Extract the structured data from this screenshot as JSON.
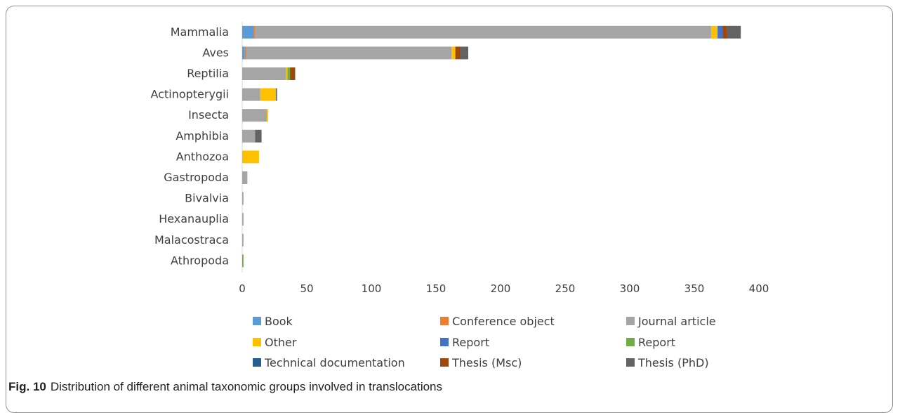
{
  "chart_data": {
    "type": "bar",
    "orientation": "horizontal",
    "stacked": true,
    "categories": [
      "Mammalia",
      "Aves",
      "Reptilia",
      "Actinopterygii",
      "Insecta",
      "Amphibia",
      "Anthozoa",
      "Gastropoda",
      "Bivalvia",
      "Hexanauplia",
      "Malacostraca",
      "Athropoda"
    ],
    "series": [
      {
        "name": "Book",
        "color": "#5b9bd5",
        "values": [
          9,
          2,
          0,
          0,
          0,
          0,
          0,
          0,
          0,
          0,
          0,
          0
        ]
      },
      {
        "name": "Conference object",
        "color": "#ed7d31",
        "values": [
          1,
          1,
          0,
          0,
          0,
          0,
          0,
          0,
          0,
          0,
          0,
          0
        ]
      },
      {
        "name": "Journal article",
        "color": "#a5a5a5",
        "values": [
          353,
          159,
          34,
          14,
          19,
          10,
          0,
          4,
          1,
          1,
          1,
          0
        ]
      },
      {
        "name": "Other",
        "color": "#ffc000",
        "values": [
          5,
          3,
          1,
          12,
          1,
          0,
          13,
          0,
          0,
          0,
          0,
          0
        ]
      },
      {
        "name": "Report",
        "color": "#4472c4",
        "values": [
          4,
          0,
          0,
          1,
          0,
          0,
          0,
          0,
          0,
          0,
          0,
          0
        ]
      },
      {
        "name": "Report",
        "color": "#70ad47",
        "values": [
          0,
          0,
          2,
          0,
          0,
          0,
          0,
          0,
          0,
          0,
          0,
          1
        ]
      },
      {
        "name": "Technical documentation",
        "color": "#255e91",
        "values": [
          0,
          0,
          0,
          0,
          0,
          0,
          0,
          0,
          0,
          0,
          0,
          0
        ]
      },
      {
        "name": "Thesis (Msc)",
        "color": "#9e480e",
        "values": [
          3,
          4,
          4,
          0,
          0,
          0,
          0,
          0,
          0,
          0,
          0,
          0
        ]
      },
      {
        "name": "Thesis (PhD)",
        "color": "#636363",
        "values": [
          11,
          6,
          0,
          0,
          0,
          5,
          0,
          0,
          0,
          0,
          0,
          0
        ]
      }
    ],
    "xlim": [
      0,
      400
    ],
    "xticks": [
      0,
      50,
      100,
      150,
      200,
      250,
      300,
      350,
      400
    ],
    "grid": false,
    "legend_position": "bottom",
    "title": "",
    "xlabel": "",
    "ylabel": ""
  },
  "caption": {
    "label": "Fig. 10",
    "text": "Distribution of different animal taxonomic groups involved in translocations"
  }
}
